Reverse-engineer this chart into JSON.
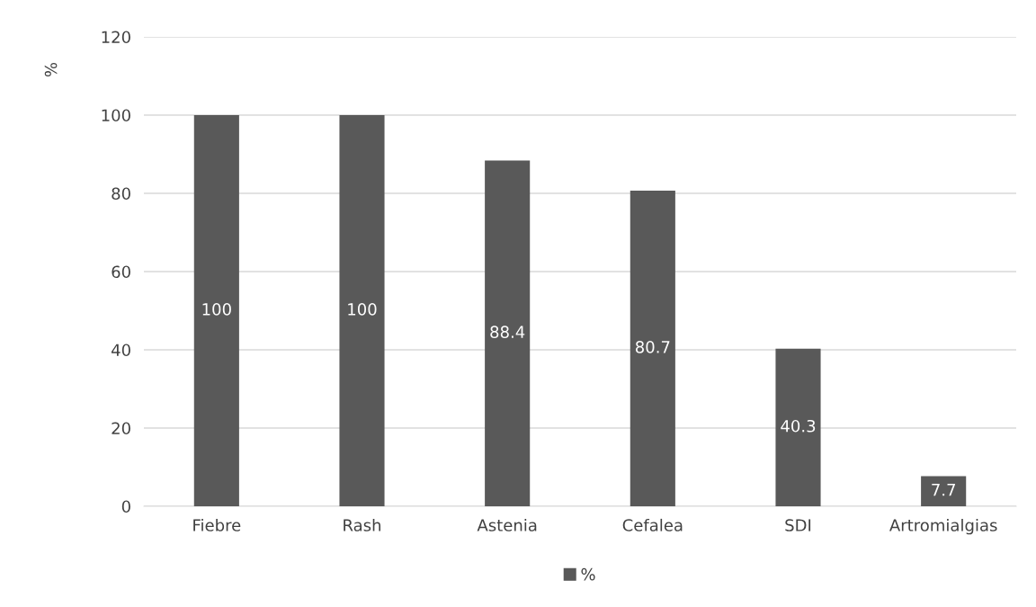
{
  "chart_data": {
    "type": "bar",
    "ylabel": "%",
    "categories": [
      "Fiebre",
      "Rash",
      "Astenia",
      "Cefalea",
      "SDI",
      "Artromialgias"
    ],
    "series": [
      {
        "name": "%",
        "color": "#595959",
        "values": [
          100,
          100,
          88.4,
          80.7,
          40.3,
          7.7
        ]
      }
    ],
    "ylim": [
      0,
      120
    ],
    "yticks": [
      0,
      20,
      40,
      60,
      80,
      100,
      120
    ],
    "grid": "y",
    "legend": "bottom",
    "data_labels": true
  }
}
